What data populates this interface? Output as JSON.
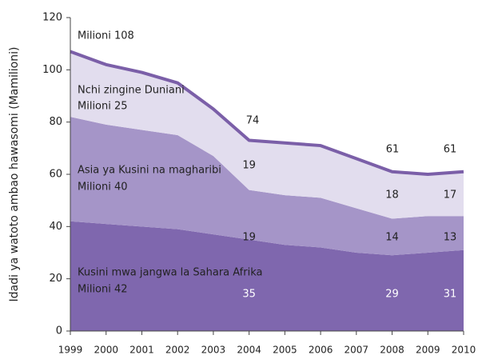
{
  "chart_data": {
    "type": "stacked_area",
    "y_label": "Idadi ya watoto ambao hawasomi (Mamilioni)",
    "x": [
      1999,
      2000,
      2001,
      2002,
      2003,
      2004,
      2005,
      2006,
      2007,
      2008,
      2009,
      2010
    ],
    "series": [
      {
        "name": "Kusini mwa jangwa la Sahara Afrika",
        "color": "#7f67ae",
        "values": [
          42,
          41,
          40,
          39,
          37,
          35,
          33,
          32,
          30,
          29,
          30,
          31
        ]
      },
      {
        "name": "Asia ya Kusini na magharibi",
        "color": "#a595c8",
        "values": [
          40,
          38,
          37,
          36,
          30,
          19,
          19,
          19,
          17,
          14,
          14,
          13
        ]
      },
      {
        "name": "Nchi zingine Duniani",
        "color": "#e2ddee",
        "values": [
          25,
          23,
          22,
          20,
          18,
          19,
          20,
          20,
          19,
          18,
          16,
          17
        ]
      }
    ],
    "annotations": [
      "Milioni 108",
      "Milioni 25",
      "Milioni 40",
      "Milioni 42",
      "74",
      "61",
      "61"
    ],
    "outline_color": "#7b5fa8",
    "xlim": [
      1999,
      2010
    ],
    "xticks": [
      1999,
      2000,
      2001,
      2002,
      2003,
      2004,
      2005,
      2006,
      2007,
      2008,
      2009,
      2010
    ],
    "ylim": [
      0,
      120
    ],
    "yticks": [
      0,
      20,
      40,
      60,
      80,
      100,
      120
    ]
  }
}
